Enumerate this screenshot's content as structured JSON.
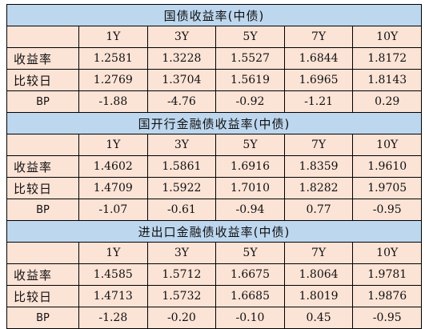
{
  "columns": [
    "1Y",
    "3Y",
    "5Y",
    "7Y",
    "10Y"
  ],
  "row_labels": {
    "yield": "收益率",
    "compare": "比较日",
    "bp": "BP"
  },
  "colors": {
    "header_bg": "#bdd7ee",
    "body_bg": "#fbe3d6",
    "border": "#000000"
  },
  "sections": [
    {
      "title": "国债收益率(中债)",
      "yield": [
        "1.2581",
        "1.3228",
        "1.5527",
        "1.6844",
        "1.8172"
      ],
      "compare": [
        "1.2769",
        "1.3704",
        "1.5619",
        "1.6965",
        "1.8143"
      ],
      "bp": [
        "-1.88",
        "-4.76",
        "-0.92",
        "-1.21",
        "0.29"
      ]
    },
    {
      "title": "国开行金融债收益率(中债)",
      "yield": [
        "1.4602",
        "1.5861",
        "1.6916",
        "1.8359",
        "1.9610"
      ],
      "compare": [
        "1.4709",
        "1.5922",
        "1.7010",
        "1.8282",
        "1.9705"
      ],
      "bp": [
        "-1.07",
        "-0.61",
        "-0.94",
        "0.77",
        "-0.95"
      ]
    },
    {
      "title": "进出口金融债收益率(中债)",
      "yield": [
        "1.4585",
        "1.5712",
        "1.6675",
        "1.8064",
        "1.9781"
      ],
      "compare": [
        "1.4713",
        "1.5732",
        "1.6685",
        "1.8019",
        "1.9876"
      ],
      "bp": [
        "-1.28",
        "-0.20",
        "-0.10",
        "0.45",
        "-0.95"
      ]
    }
  ]
}
